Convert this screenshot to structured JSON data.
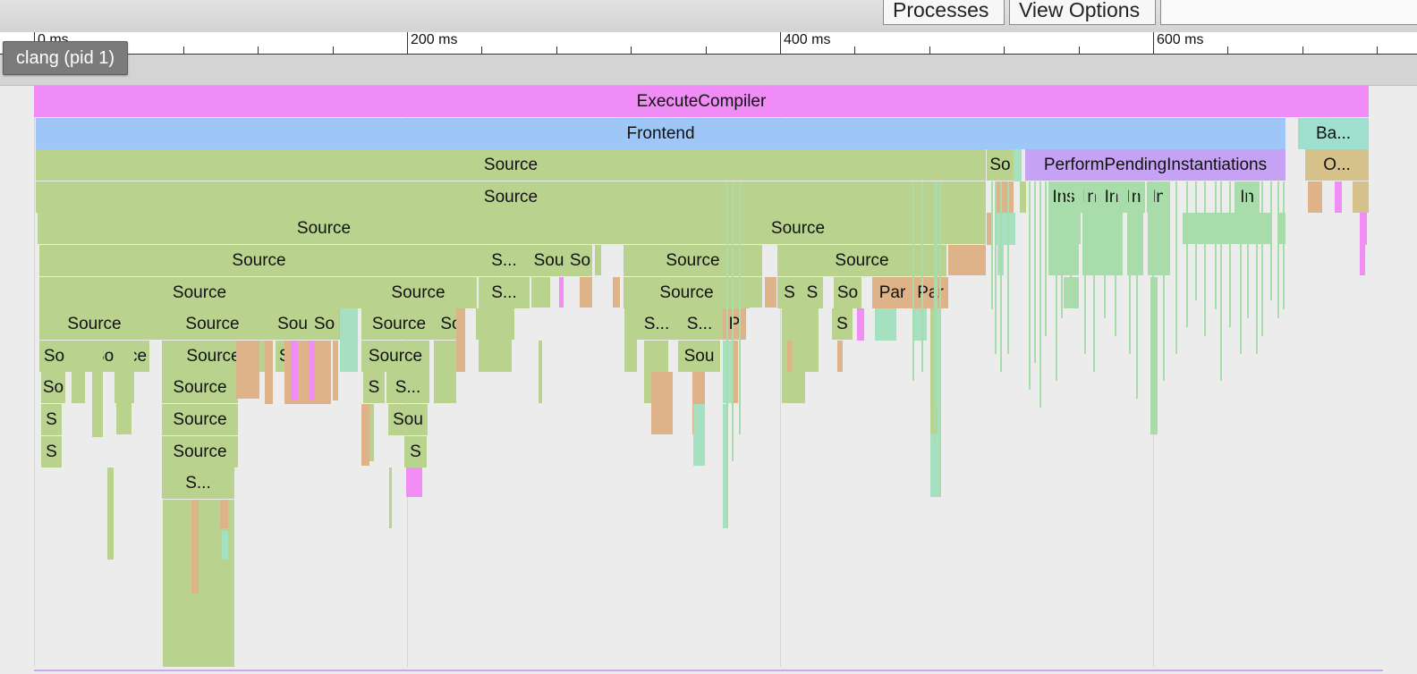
{
  "toolbar": {
    "processes_label": "Processes",
    "view_options_label": "View Options"
  },
  "ruler": {
    "labels": [
      "0 ms",
      "200 ms",
      "400 ms",
      "600 ms"
    ]
  },
  "process": {
    "label": "clang (pid 1)"
  },
  "colors": {
    "execute": "#ef8cf6",
    "frontend": "#9ec7f8",
    "source": "#b9d38f",
    "instantiate": "#a8dcaa",
    "parse": "#deb38a",
    "backend": "#9ee0cd",
    "pending": "#c6a2f5",
    "opt": "#d6c18b",
    "magenta": "#f08ef6",
    "teal": "#a5e0c0"
  },
  "flame": {
    "execute": "ExecuteCompiler",
    "frontend": "Frontend",
    "backend": "Ba...",
    "pending": "PerformPendingInstantiations",
    "opt": "O...",
    "source": "Source",
    "so": "So",
    "s": "S",
    "sou": "Sou",
    "s_ellipsis": "S...",
    "p": "P",
    "par": "Par",
    "ins": "Ins",
    "in": "In"
  }
}
